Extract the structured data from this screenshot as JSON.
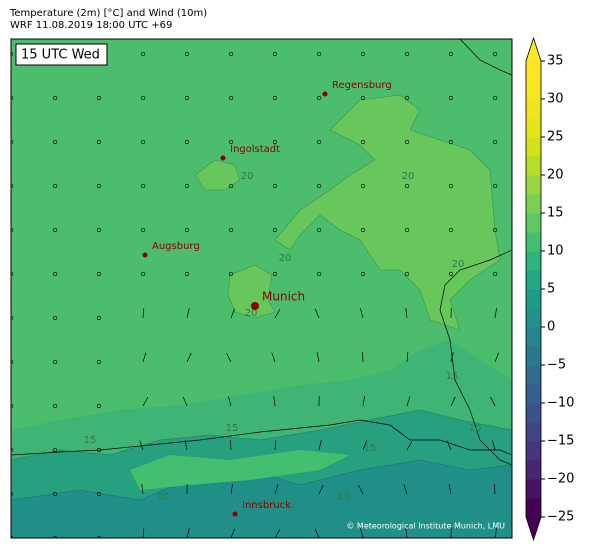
{
  "header": {
    "title": "Temperature (2m) [°C] and Wind (10m)",
    "subtitle": "WRF 11.08.2019 18:00 UTC +69"
  },
  "map": {
    "time_label": "15 UTC Wed",
    "cities": [
      {
        "name": "Regensburg"
      },
      {
        "name": "Ingolstadt"
      },
      {
        "name": "Augsburg"
      },
      {
        "name": "Munich"
      },
      {
        "name": "Innsbruck"
      }
    ],
    "contour_labels": [
      "20",
      "20",
      "20",
      "20",
      "20",
      "15",
      "15",
      "15",
      "10",
      "10",
      "10",
      "15"
    ],
    "credit": "© Meteorological Institute Munich, LMU"
  },
  "colorbar": {
    "lim": [
      -25,
      35
    ],
    "ticks": [
      {
        "value": -25,
        "label": "−25"
      },
      {
        "value": -20,
        "label": "−20"
      },
      {
        "value": -15,
        "label": "−15"
      },
      {
        "value": -10,
        "label": "−10"
      },
      {
        "value": -5,
        "label": "−5"
      },
      0,
      5,
      10,
      15,
      20,
      25,
      30,
      35
    ],
    "colors": [
      "#440154",
      "#471365",
      "#482475",
      "#463480",
      "#414487",
      "#3b528b",
      "#355f8d",
      "#2f6c8e",
      "#2a788e",
      "#25848e",
      "#21918c",
      "#1e9c89",
      "#22a884",
      "#2fb47c",
      "#44bf70",
      "#5ec962",
      "#7ad151",
      "#98d83e",
      "#b5de2b",
      "#d2e21b",
      "#e5e419",
      "#f0e51d",
      "#f7e620",
      "#fde725"
    ],
    "under": "#440154",
    "over": "#fde725"
  }
}
